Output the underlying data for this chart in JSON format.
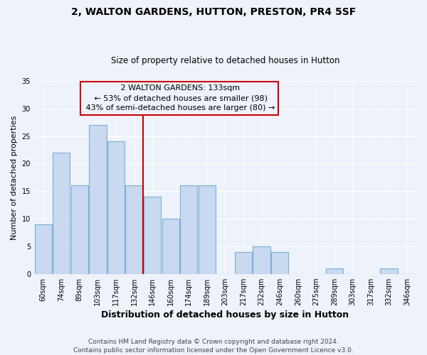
{
  "title": "2, WALTON GARDENS, HUTTON, PRESTON, PR4 5SF",
  "subtitle": "Size of property relative to detached houses in Hutton",
  "xlabel": "Distribution of detached houses by size in Hutton",
  "ylabel": "Number of detached properties",
  "bar_labels": [
    "60sqm",
    "74sqm",
    "89sqm",
    "103sqm",
    "117sqm",
    "132sqm",
    "146sqm",
    "160sqm",
    "174sqm",
    "189sqm",
    "203sqm",
    "217sqm",
    "232sqm",
    "246sqm",
    "260sqm",
    "275sqm",
    "289sqm",
    "303sqm",
    "317sqm",
    "332sqm",
    "346sqm"
  ],
  "bar_values": [
    9,
    22,
    16,
    27,
    24,
    16,
    14,
    10,
    16,
    16,
    0,
    4,
    5,
    4,
    0,
    0,
    1,
    0,
    0,
    1,
    0
  ],
  "bar_color": "#c8d9f0",
  "bar_edge_color": "#7bafd4",
  "vline_color": "#cc0000",
  "vline_pos": 5.5,
  "ylim": [
    0,
    35
  ],
  "annotation_title": "2 WALTON GARDENS: 133sqm",
  "annotation_line1": "← 53% of detached houses are smaller (98)",
  "annotation_line2": "43% of semi-detached houses are larger (80) →",
  "footer_line1": "Contains HM Land Registry data © Crown copyright and database right 2024.",
  "footer_line2": "Contains public sector information licensed under the Open Government Licence v3.0.",
  "bg_color": "#eef2fa",
  "grid_color": "#ffffff",
  "title_fontsize": 10,
  "subtitle_fontsize": 8.5,
  "ylabel_fontsize": 8,
  "xlabel_fontsize": 9,
  "tick_fontsize": 7,
  "annot_fontsize": 8,
  "footer_fontsize": 6.5
}
